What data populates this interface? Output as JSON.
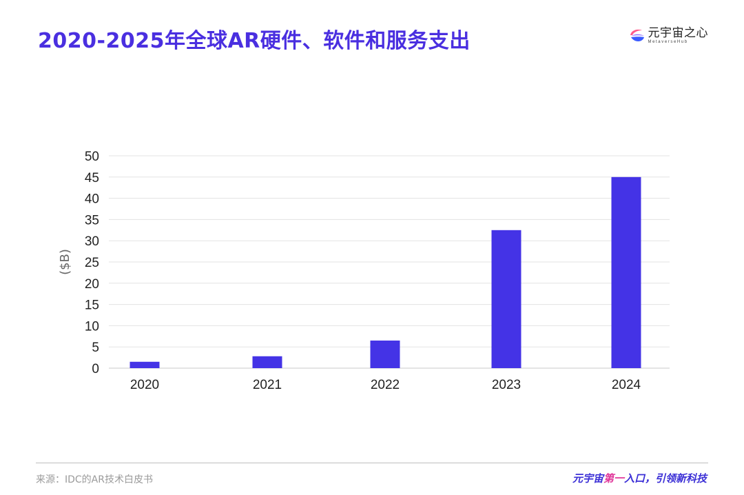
{
  "header": {
    "title": "2020-2025年全球AR硬件、软件和服务支出"
  },
  "logo": {
    "cn": "元宇宙之心",
    "en": "MetaverseHub",
    "icon": "metaversehub-logo-icon",
    "colors": {
      "top": "#ff5a8a",
      "bottom": "#3b5bff"
    }
  },
  "chart_data": {
    "type": "bar",
    "categories": [
      "2020",
      "2021",
      "2022",
      "2023",
      "2024"
    ],
    "values": [
      1.5,
      2.8,
      6.5,
      32.5,
      45
    ],
    "ylabel": "($B)",
    "ylim": [
      0,
      50
    ],
    "yticks": [
      0,
      5,
      10,
      15,
      20,
      25,
      30,
      35,
      40,
      45,
      50
    ],
    "grid": true,
    "bar_color": "#4433e6"
  },
  "footer": {
    "source": "来源：IDC的AR技术白皮书",
    "slogan_part1": "元宇宙",
    "slogan_part2": "第一",
    "slogan_part3": "入口，引领新科技",
    "slogan_color": "#3b2fd6",
    "slogan_accent_color": "#e0379a"
  }
}
